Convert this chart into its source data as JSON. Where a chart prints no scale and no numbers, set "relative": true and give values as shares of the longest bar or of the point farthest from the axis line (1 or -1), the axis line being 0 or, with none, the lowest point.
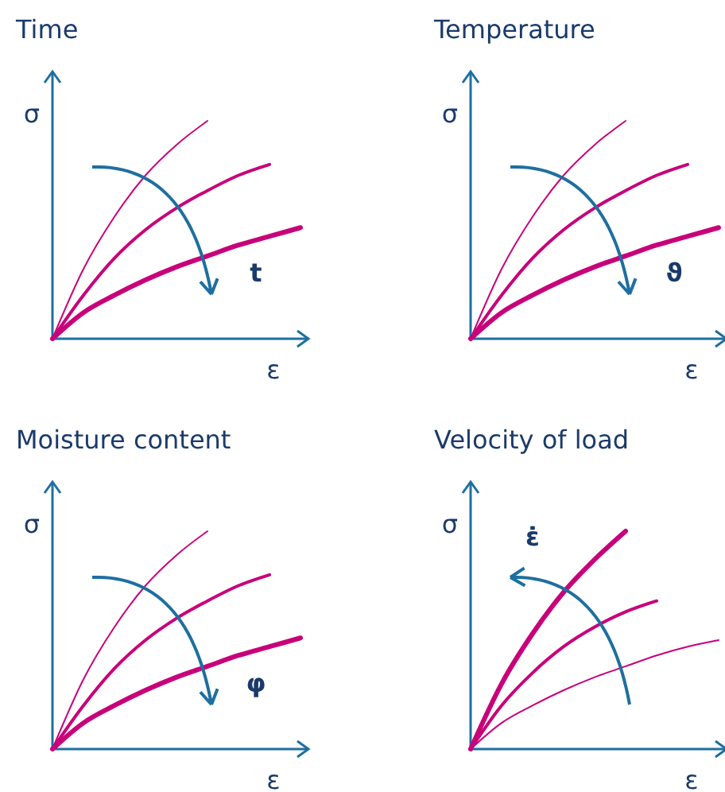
{
  "chart_data": [
    {
      "type": "line",
      "title": "Time",
      "xlabel": "ε",
      "ylabel": "σ",
      "relative": true,
      "tick_labels": false,
      "grid": false,
      "legend": false,
      "marker": "none",
      "line_style": "solid",
      "annotations": [
        "t"
      ],
      "categories": [
        null,
        null,
        null,
        null,
        null,
        null,
        null,
        null,
        null
      ],
      "series": [
        {
          "color": "#c8007a",
          "values": [
            0,
            0.32,
            0.56,
            0.75,
            0.89,
            1.0,
            null,
            null,
            null
          ]
        },
        {
          "color": "#c8007a",
          "values": [
            0,
            0.2,
            0.37,
            0.5,
            0.6,
            0.68,
            0.75,
            0.8,
            null
          ]
        },
        {
          "color": "#c8007a",
          "values": [
            0,
            0.12,
            0.2,
            0.27,
            0.33,
            0.38,
            0.43,
            0.47,
            0.51
          ]
        }
      ]
    },
    {
      "type": "line",
      "title": "Temperature",
      "xlabel": "ε",
      "ylabel": "σ",
      "relative": true,
      "tick_labels": false,
      "grid": false,
      "legend": false,
      "marker": "none",
      "line_style": "solid",
      "annotations": [
        "ϑ"
      ],
      "categories": [
        null,
        null,
        null,
        null,
        null,
        null,
        null,
        null,
        null
      ],
      "series": [
        {
          "color": "#c8007a",
          "values": [
            0,
            0.32,
            0.56,
            0.75,
            0.89,
            1.0,
            null,
            null,
            null
          ]
        },
        {
          "color": "#c8007a",
          "values": [
            0,
            0.2,
            0.37,
            0.5,
            0.6,
            0.68,
            0.75,
            0.8,
            null
          ]
        },
        {
          "color": "#c8007a",
          "values": [
            0,
            0.12,
            0.2,
            0.27,
            0.33,
            0.38,
            0.43,
            0.47,
            0.51
          ]
        }
      ]
    },
    {
      "type": "line",
      "title": "Moisture content",
      "xlabel": "ε",
      "ylabel": "σ",
      "relative": true,
      "tick_labels": false,
      "grid": false,
      "legend": false,
      "marker": "none",
      "line_style": "solid",
      "annotations": [
        "φ"
      ],
      "categories": [
        null,
        null,
        null,
        null,
        null,
        null,
        null,
        null,
        null
      ],
      "series": [
        {
          "color": "#c8007a",
          "values": [
            0,
            0.32,
            0.56,
            0.75,
            0.89,
            1.0,
            null,
            null,
            null
          ]
        },
        {
          "color": "#c8007a",
          "values": [
            0,
            0.2,
            0.37,
            0.5,
            0.6,
            0.68,
            0.75,
            0.8,
            null
          ]
        },
        {
          "color": "#c8007a",
          "values": [
            0,
            0.12,
            0.2,
            0.27,
            0.33,
            0.38,
            0.43,
            0.47,
            0.51
          ]
        }
      ]
    },
    {
      "type": "line",
      "title": "Velocity of load",
      "xlabel": "ε",
      "ylabel": "σ",
      "relative": true,
      "tick_labels": false,
      "grid": false,
      "legend": false,
      "marker": "none",
      "line_style": "solid",
      "annotations": [
        "ε̇"
      ],
      "categories": [
        null,
        null,
        null,
        null,
        null,
        null,
        null,
        null,
        null
      ],
      "series": [
        {
          "color": "#c8007a",
          "values": [
            0,
            0.12,
            0.2,
            0.27,
            0.33,
            0.38,
            0.43,
            0.47,
            0.5
          ]
        },
        {
          "color": "#c8007a",
          "values": [
            0,
            0.2,
            0.35,
            0.47,
            0.56,
            0.63,
            0.68,
            null,
            null
          ]
        },
        {
          "color": "#c8007a",
          "values": [
            0,
            0.3,
            0.53,
            0.72,
            0.87,
            1.0,
            null,
            null,
            null
          ]
        }
      ]
    }
  ]
}
